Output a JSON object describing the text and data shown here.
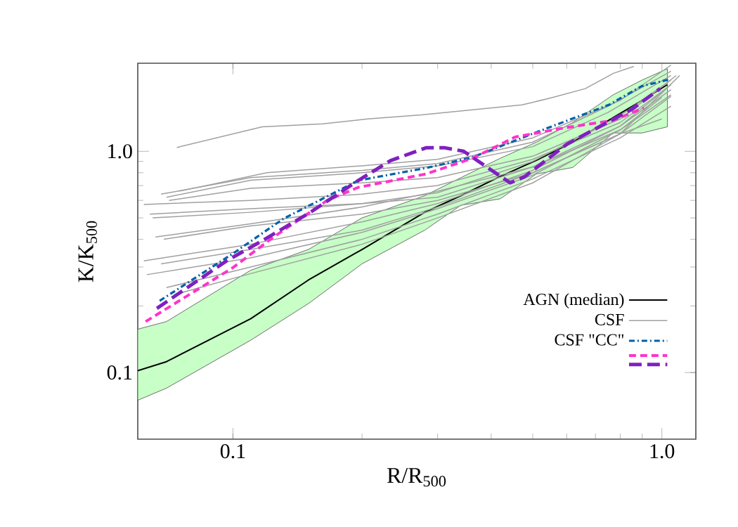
{
  "chart_data": {
    "type": "line",
    "xlabel": "R/R$_{500}$",
    "ylabel": "K/K$_{500}$",
    "log": "xy",
    "xlim": [
      0.06,
      1.2
    ],
    "ylim": [
      0.05,
      2.5
    ],
    "xticks": [
      0.1,
      {
        "value": 1,
        "label": "1.0"
      }
    ],
    "yticks": [
      0.1,
      {
        "value": 1,
        "label": "1.0"
      }
    ],
    "legend": "right",
    "series": [
      {
        "name": "AGN (median)",
        "color": "#000000",
        "line_style": "solid",
        "x": [
          0.06,
          0.07,
          0.11,
          0.15,
          0.2,
          0.28,
          0.34,
          0.42,
          0.51,
          0.62,
          0.77,
          0.9,
          1.03
        ],
        "values": [
          0.102,
          0.112,
          0.175,
          0.262,
          0.36,
          0.53,
          0.63,
          0.77,
          0.91,
          1.1,
          1.42,
          1.7,
          2.0
        ],
        "lower": [
          0.075,
          0.085,
          0.14,
          0.205,
          0.31,
          0.44,
          0.57,
          0.61,
          0.79,
          0.845,
          1.21,
          1.21,
          1.29
        ],
        "upper": [
          0.157,
          0.17,
          0.29,
          0.36,
          0.5,
          0.63,
          0.76,
          0.93,
          1.1,
          1.35,
          1.8,
          2.1,
          2.36
        ]
      },
      {
        "name": "CSF",
        "color": "#a0a0a0",
        "line_style": "solid",
        "x": [
          0.074,
          0.117,
          0.162,
          0.206,
          0.275,
          0.472,
          0.556,
          0.663,
          0.771,
          0.86
        ],
        "values": [
          1.04,
          1.29,
          1.33,
          1.4,
          1.46,
          1.62,
          1.75,
          1.92,
          2.25,
          2.42
        ]
      },
      {
        "color": "#a0a0a0",
        "line_style": "solid",
        "x": [
          0.068,
          0.11,
          0.2,
          0.3,
          0.5,
          0.75,
          1.05
        ],
        "values": [
          0.64,
          0.76,
          0.82,
          0.88,
          1.1,
          1.6,
          2.3
        ]
      },
      {
        "color": "#a0a0a0",
        "line_style": "solid",
        "x": [
          0.07,
          0.11,
          0.2,
          0.3,
          0.5,
          0.75,
          1.05
        ],
        "values": [
          0.62,
          0.74,
          0.8,
          0.86,
          1.05,
          1.5,
          2.2
        ]
      },
      {
        "color": "#a0a0a0",
        "line_style": "solid",
        "x": [
          0.071,
          0.11,
          0.2,
          0.3,
          0.5,
          0.8,
          1.08
        ],
        "values": [
          0.6,
          0.68,
          0.72,
          0.76,
          0.95,
          1.4,
          2.2
        ]
      },
      {
        "color": "#a0a0a0",
        "line_style": "solid",
        "x": [
          0.062,
          0.11,
          0.2,
          0.3,
          0.5,
          0.8,
          1.05
        ],
        "values": [
          0.575,
          0.6,
          0.64,
          0.7,
          0.92,
          1.35,
          2.0
        ]
      },
      {
        "color": "#a0a0a0",
        "line_style": "solid",
        "x": [
          0.064,
          0.11,
          0.2,
          0.3,
          0.5,
          0.8,
          1.05
        ],
        "values": [
          0.52,
          0.55,
          0.58,
          0.65,
          0.9,
          1.45,
          2.1
        ]
      },
      {
        "color": "#a0a0a0",
        "line_style": "solid",
        "x": [
          0.065,
          0.11,
          0.2,
          0.3,
          0.5,
          0.8,
          1.05
        ],
        "values": [
          0.5,
          0.53,
          0.58,
          0.62,
          0.85,
          1.3,
          1.9
        ]
      },
      {
        "color": "#a0a0a0",
        "line_style": "solid",
        "x": [
          0.066,
          0.11,
          0.2,
          0.3,
          0.5,
          0.8,
          1.05
        ],
        "values": [
          0.41,
          0.47,
          0.56,
          0.66,
          0.85,
          1.25,
          1.8
        ]
      },
      {
        "color": "#a0a0a0",
        "line_style": "solid",
        "x": [
          0.069,
          0.11,
          0.2,
          0.3,
          0.5,
          0.8,
          1.05
        ],
        "values": [
          0.4,
          0.46,
          0.52,
          0.6,
          0.8,
          1.2,
          1.77
        ]
      },
      {
        "color": "#a0a0a0",
        "line_style": "solid",
        "x": [
          0.062,
          0.11,
          0.2,
          0.3,
          0.5,
          0.8,
          1.05
        ],
        "values": [
          0.32,
          0.38,
          0.48,
          0.58,
          0.82,
          1.3,
          2.0
        ]
      },
      {
        "color": "#a0a0a0",
        "line_style": "solid",
        "x": [
          0.068,
          0.11,
          0.2,
          0.3,
          0.5,
          0.8,
          1.0
        ],
        "values": [
          0.31,
          0.36,
          0.44,
          0.56,
          0.8,
          1.2,
          1.4
        ]
      },
      {
        "color": "#a0a0a0",
        "line_style": "solid",
        "x": [
          0.063,
          0.11,
          0.2,
          0.3,
          0.5,
          0.8,
          1.0
        ],
        "values": [
          0.277,
          0.33,
          0.43,
          0.55,
          0.78,
          1.25,
          1.75
        ]
      },
      {
        "color": "#a0a0a0",
        "line_style": "solid",
        "x": [
          0.07,
          0.11,
          0.2,
          0.3,
          0.5,
          0.8,
          1.05
        ],
        "values": [
          0.242,
          0.3,
          0.4,
          0.52,
          0.75,
          1.15,
          1.6
        ]
      },
      {
        "color": "#a0a0a0",
        "line_style": "solid",
        "x": [
          0.073,
          0.11,
          0.2,
          0.3,
          0.5,
          0.8,
          1.1
        ],
        "values": [
          0.225,
          0.28,
          0.38,
          0.5,
          0.72,
          1.2,
          2.2
        ]
      },
      {
        "color": "#a0a0a0",
        "line_style": "solid",
        "x": [
          0.075,
          0.12,
          0.2,
          0.3,
          0.5,
          0.8,
          1.05
        ],
        "values": [
          0.66,
          0.8,
          0.86,
          0.92,
          1.15,
          1.7,
          2.45
        ]
      },
      {
        "name": "CSF \"CC\"",
        "color": "#0060a8",
        "line_style": "dashdot",
        "x": [
          0.0675,
          0.1,
          0.131,
          0.196,
          0.285,
          0.362,
          0.516,
          0.752,
          0.897,
          1.04
        ],
        "values": [
          0.211,
          0.345,
          0.495,
          0.738,
          0.844,
          0.94,
          1.23,
          1.62,
          1.97,
          2.11
        ]
      },
      {
        "color": "#ff33cc",
        "line_style": "dashed",
        "x": [
          0.0626,
          0.1,
          0.124,
          0.166,
          0.196,
          0.282,
          0.362,
          0.455,
          0.585,
          0.77,
          0.908
        ],
        "values": [
          0.17,
          0.298,
          0.408,
          0.6,
          0.687,
          0.79,
          0.93,
          1.16,
          1.27,
          1.38,
          1.57
        ]
      },
      {
        "color": "#8020c0",
        "line_style": "longdashed",
        "x": [
          0.0665,
          0.0967,
          0.118,
          0.152,
          0.196,
          0.233,
          0.282,
          0.312,
          0.345,
          0.443,
          0.478,
          0.6,
          0.852,
          0.991
        ],
        "values": [
          0.195,
          0.32,
          0.398,
          0.532,
          0.738,
          0.907,
          1.037,
          1.037,
          1.0,
          0.72,
          0.766,
          1.075,
          1.55,
          1.92
        ]
      }
    ]
  }
}
